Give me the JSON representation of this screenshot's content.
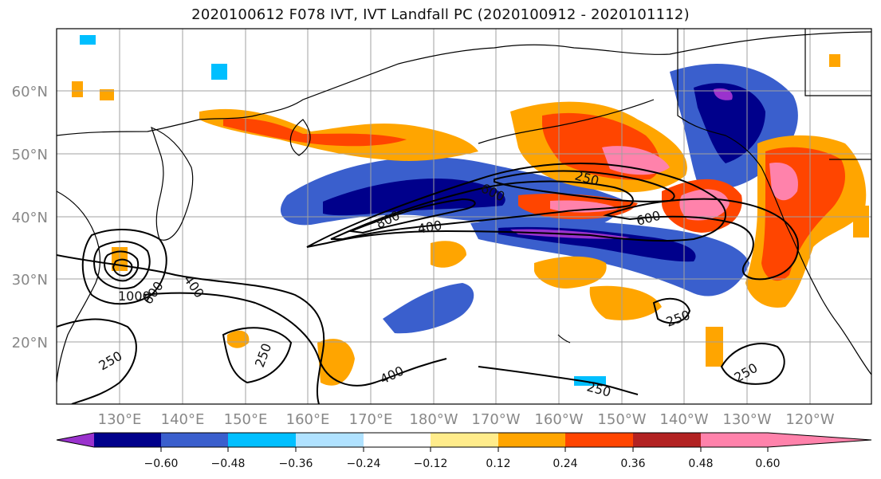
{
  "title": "2020100612 F078 IVT, IVT Landfall PC (2020100912 - 2020101112)",
  "map": {
    "lat_labels": [
      "60°N",
      "50°N",
      "40°N",
      "30°N",
      "20°N"
    ],
    "lon_labels": [
      "130°E",
      "140°E",
      "150°E",
      "160°E",
      "170°E",
      "180°W",
      "170°W",
      "160°W",
      "150°W",
      "140°W",
      "130°W",
      "120°W"
    ],
    "contour_labels": [
      "600",
      "250",
      "800",
      "400",
      "600",
      "400",
      "600",
      "1000",
      "250",
      "250",
      "250",
      "400",
      "250",
      "250",
      "250"
    ]
  },
  "colorbar": {
    "tick_labels": [
      "−0.60",
      "−0.48",
      "−0.36",
      "−0.24",
      "−0.12",
      "0.12",
      "0.24",
      "0.36",
      "0.48",
      "0.60"
    ],
    "colors": [
      "#9a32cd",
      "#00008b",
      "#3a5fcd",
      "#00bfff",
      "#b0e2ff",
      "#ffffff",
      "#ffec8b",
      "#ffa500",
      "#ff4500",
      "#b22222",
      "#ff82ab"
    ]
  }
}
